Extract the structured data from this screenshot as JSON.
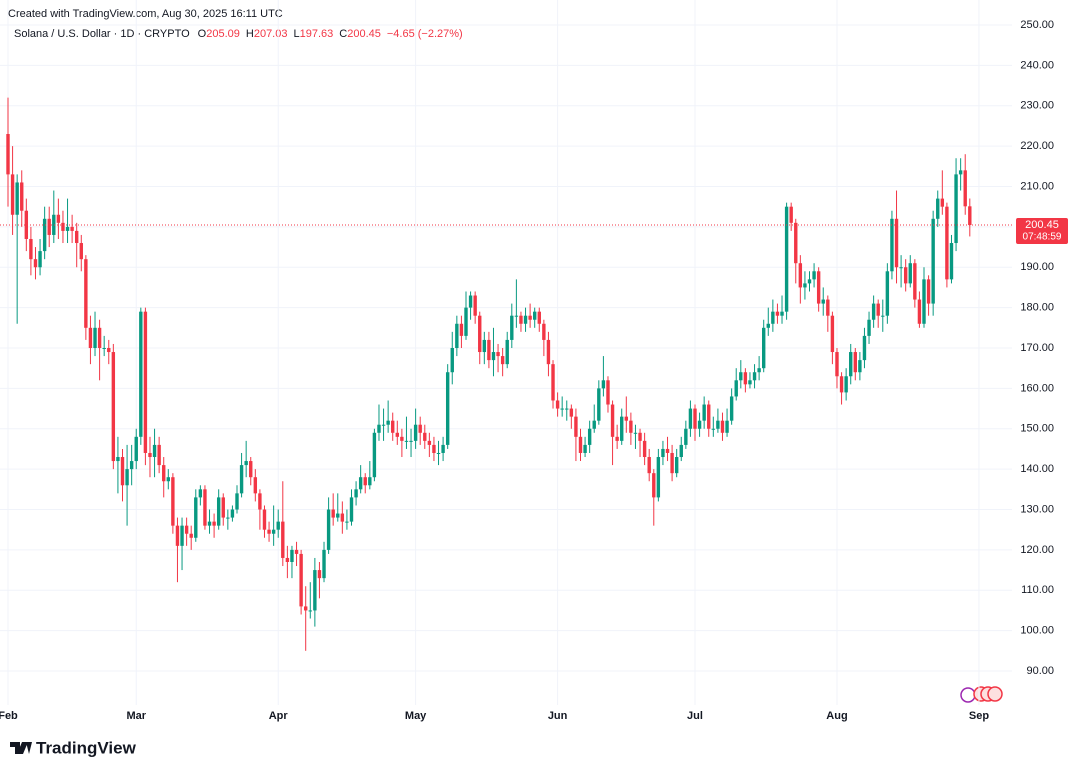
{
  "chart_data": {
    "type": "candlestick",
    "created": "Created with TradingView.com, Aug 30, 2025 16:11 UTC",
    "symbol": "Solana / U.S. Dollar · 1D · CRYPTO",
    "legend": [
      {
        "label": "O",
        "value": 205.09
      },
      {
        "label": "H",
        "value": 207.03
      },
      {
        "label": "L",
        "value": 197.63
      },
      {
        "label": "C",
        "value": 200.45
      }
    ],
    "change": "−4.65 (−2.27%)",
    "brand": "TradingView",
    "up_color": "#089981",
    "down_color": "#f23645",
    "open": [
      223,
      213,
      203,
      211,
      204,
      197,
      192,
      190,
      194,
      202,
      198,
      203,
      201,
      199,
      200,
      199,
      196,
      192,
      175,
      170,
      175,
      170,
      170,
      169,
      142,
      143,
      136,
      140,
      142,
      148,
      179,
      144,
      143,
      146,
      141,
      137,
      138,
      126,
      121,
      126,
      124,
      123,
      133,
      135,
      126,
      127,
      126,
      133,
      128,
      128,
      130,
      134,
      141,
      142,
      138,
      134,
      130,
      125,
      124,
      125,
      127,
      118,
      117,
      120,
      119,
      106,
      105,
      105,
      115,
      113,
      120,
      130,
      128,
      129,
      127,
      127,
      133,
      135,
      138,
      136,
      138,
      149,
      151,
      151,
      152,
      149,
      148,
      147,
      147,
      147,
      151,
      149,
      147,
      146,
      144,
      144,
      146,
      164,
      170,
      176,
      173,
      180,
      183,
      178,
      169,
      172,
      167,
      169,
      168,
      166,
      172,
      178,
      178,
      176,
      178,
      177,
      179,
      176,
      172,
      166,
      157,
      155,
      155,
      155,
      153,
      148,
      144,
      146,
      150,
      152,
      160,
      162,
      156,
      148,
      147,
      153,
      152,
      149,
      149,
      147,
      143,
      139,
      133,
      143,
      145,
      144,
      139,
      143,
      146,
      150,
      155,
      150,
      152,
      156,
      150,
      150,
      152,
      149,
      152,
      158,
      162,
      164,
      161,
      162,
      164,
      165,
      175,
      176,
      179,
      178,
      179,
      205,
      201,
      191,
      185,
      186,
      187,
      189,
      181,
      182,
      178,
      169,
      163,
      159,
      163,
      169,
      164,
      167,
      173,
      177,
      181,
      178,
      178,
      189,
      202,
      190,
      190,
      186,
      191,
      182,
      176,
      187,
      181,
      202,
      207,
      205,
      187,
      196,
      213,
      214,
      205.09
    ],
    "high": [
      232,
      220,
      213,
      214,
      207,
      200,
      195,
      197,
      205,
      205,
      209,
      207,
      204,
      207,
      203,
      201,
      198,
      193,
      178,
      179,
      177,
      173,
      172,
      171,
      148,
      145,
      146,
      146,
      150,
      180,
      180,
      148,
      150,
      148,
      143,
      140,
      139,
      128,
      128,
      128,
      126,
      135,
      136,
      136,
      130,
      129,
      135,
      134,
      130,
      131,
      136,
      144,
      147,
      143,
      140,
      135,
      131,
      127,
      131,
      130,
      137,
      121,
      121,
      122,
      120,
      111,
      112,
      118,
      117,
      122,
      133,
      134,
      134,
      132,
      130,
      135,
      137,
      141,
      139,
      142,
      150,
      156,
      155,
      157,
      154,
      152,
      150,
      153,
      150,
      155,
      153,
      151,
      149,
      148,
      147,
      148,
      166,
      174,
      178,
      178,
      184,
      184,
      184,
      179,
      174,
      174,
      175,
      171,
      170,
      174,
      181,
      187,
      179,
      180,
      181,
      180,
      180,
      177,
      174,
      167,
      159,
      158,
      157,
      156,
      155,
      150,
      148,
      152,
      156,
      162,
      168,
      163,
      157,
      151,
      155,
      158,
      154,
      151,
      150,
      149,
      145,
      140,
      145,
      147,
      148,
      146,
      145,
      148,
      152,
      157,
      156,
      154,
      158,
      157,
      153,
      155,
      154,
      155,
      160,
      165,
      167,
      165,
      164,
      166,
      168,
      177,
      180,
      182,
      181,
      183,
      206,
      206,
      202,
      193,
      189,
      189,
      191,
      190,
      185,
      183,
      179,
      170,
      164,
      165,
      171,
      170,
      169,
      175,
      179,
      183,
      182,
      182,
      191,
      204,
      209,
      193,
      192,
      193,
      192,
      184,
      190,
      188,
      204,
      209,
      214,
      206,
      198,
      217,
      217,
      218,
      207.03
    ],
    "low": [
      205,
      198,
      176,
      200,
      194,
      188,
      187,
      188,
      192,
      195,
      196,
      197,
      196,
      196,
      196,
      190,
      189,
      172,
      166,
      168,
      162,
      168,
      166,
      140,
      134,
      132,
      126,
      136,
      140,
      146,
      141,
      138,
      138,
      139,
      133,
      135,
      124,
      112,
      115,
      121,
      120,
      122,
      131,
      125,
      124,
      123,
      125,
      126,
      125,
      127,
      129,
      133,
      138,
      136,
      132,
      125,
      123,
      122,
      121,
      123,
      116,
      113,
      113,
      116,
      104,
      95,
      103,
      101,
      108,
      112,
      119,
      126,
      127,
      124,
      125,
      126,
      131,
      134,
      134,
      135,
      137,
      147,
      147,
      149,
      147,
      146,
      143,
      145,
      143,
      145,
      146,
      145,
      143,
      142,
      141,
      142,
      145,
      161,
      168,
      170,
      172,
      177,
      176,
      166,
      166,
      165,
      163,
      164,
      163,
      165,
      170,
      175,
      174,
      174,
      175,
      175,
      174,
      168,
      163,
      155,
      153,
      153,
      152,
      150,
      142,
      142,
      143,
      144,
      149,
      151,
      158,
      154,
      141,
      145,
      146,
      149,
      146,
      145,
      143,
      141,
      137,
      126,
      132,
      141,
      142,
      137,
      138,
      142,
      145,
      148,
      147,
      148,
      150,
      148,
      148,
      149,
      147,
      148,
      151,
      157,
      160,
      159,
      160,
      160,
      162,
      164,
      173,
      174,
      176,
      176,
      177,
      199,
      186,
      181,
      182,
      184,
      185,
      179,
      178,
      174,
      166,
      160,
      156,
      157,
      161,
      162,
      162,
      165,
      171,
      175,
      175,
      174,
      176,
      187,
      186,
      185,
      184,
      185,
      180,
      175,
      175,
      178,
      178,
      200,
      203,
      185,
      186,
      194,
      209,
      203,
      197.63
    ],
    "close": [
      213,
      203,
      211,
      204,
      197,
      192,
      190,
      194,
      202,
      198,
      203,
      201,
      199,
      200,
      199,
      196,
      192,
      175,
      170,
      175,
      170,
      170,
      169,
      142,
      143,
      136,
      140,
      142,
      148,
      179,
      144,
      143,
      146,
      141,
      137,
      138,
      126,
      121,
      126,
      124,
      123,
      133,
      135,
      126,
      127,
      126,
      133,
      128,
      128,
      130,
      134,
      141,
      142,
      138,
      134,
      130,
      125,
      124,
      125,
      127,
      118,
      117,
      120,
      119,
      106,
      105,
      105,
      115,
      113,
      120,
      130,
      128,
      129,
      127,
      127,
      133,
      135,
      138,
      136,
      138,
      149,
      151,
      151,
      152,
      149,
      148,
      147,
      147,
      147,
      151,
      149,
      147,
      146,
      144,
      144,
      146,
      164,
      170,
      176,
      173,
      180,
      183,
      178,
      169,
      172,
      167,
      169,
      168,
      166,
      172,
      178,
      178,
      176,
      178,
      177,
      179,
      176,
      172,
      166,
      157,
      155,
      155,
      155,
      153,
      148,
      144,
      146,
      150,
      152,
      160,
      162,
      156,
      148,
      147,
      153,
      152,
      149,
      149,
      147,
      143,
      139,
      133,
      143,
      145,
      144,
      139,
      143,
      146,
      150,
      155,
      150,
      152,
      156,
      150,
      150,
      152,
      149,
      152,
      158,
      162,
      164,
      161,
      162,
      164,
      165,
      175,
      176,
      179,
      178,
      179,
      205,
      201,
      191,
      185,
      186,
      187,
      189,
      181,
      182,
      178,
      169,
      163,
      159,
      163,
      169,
      164,
      167,
      173,
      177,
      181,
      178,
      178,
      189,
      202,
      190,
      190,
      186,
      191,
      182,
      176,
      187,
      181,
      202,
      207,
      205,
      187,
      196,
      213,
      214,
      205.09,
      200.45
    ],
    "xticks": [
      {
        "value": 0,
        "label": "Feb"
      },
      {
        "value": 28,
        "label": "Mar"
      },
      {
        "value": 59,
        "label": "Apr"
      },
      {
        "value": 89,
        "label": "May"
      },
      {
        "value": 120,
        "label": "Jun"
      },
      {
        "value": 150,
        "label": "Jul"
      },
      {
        "value": 181,
        "label": "Aug"
      },
      {
        "value": 212,
        "label": "Sep"
      }
    ],
    "ylim": [
      85,
      255
    ],
    "yticks": [
      {
        "value": 90,
        "label": "90.00"
      },
      {
        "value": 100,
        "label": "100.00"
      },
      {
        "value": 110,
        "label": "110.00"
      },
      {
        "value": 120,
        "label": "120.00"
      },
      {
        "value": 130,
        "label": "130.00"
      },
      {
        "value": 140,
        "label": "140.00"
      },
      {
        "value": 150,
        "label": "150.00"
      },
      {
        "value": 160,
        "label": "160.00"
      },
      {
        "value": 170,
        "label": "170.00"
      },
      {
        "value": 180,
        "label": "180.00"
      },
      {
        "value": 190,
        "label": "190.00"
      },
      {
        "value": 200,
        "label": "200.00"
      },
      {
        "value": 210,
        "label": "210.00"
      },
      {
        "value": 220,
        "label": "220.00"
      },
      {
        "value": 230,
        "label": "230.00"
      },
      {
        "value": 240,
        "label": "240.00"
      },
      {
        "value": 250,
        "label": "250.00"
      }
    ],
    "grid": true,
    "current_price": {
      "value": 200.45,
      "countdown": "07:48:59"
    }
  }
}
